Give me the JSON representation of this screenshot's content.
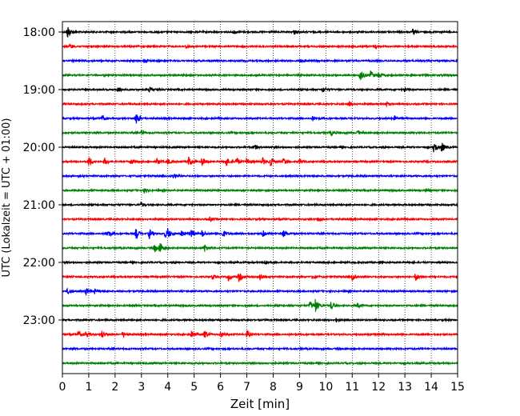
{
  "chart_data": {
    "type": "line",
    "title": "",
    "xlabel": "Zeit  [min]",
    "ylabel": "UTC (Lokalzeit = UTC + 01:00)",
    "xlim": [
      0,
      15
    ],
    "x_ticks": [
      "0",
      "1",
      "2",
      "3",
      "4",
      "5",
      "6",
      "7",
      "8",
      "9",
      "10",
      "11",
      "12",
      "13",
      "14",
      "15"
    ],
    "y_tick_labels": [
      "18:00",
      "19:00",
      "20:00",
      "21:00",
      "22:00",
      "23:00"
    ],
    "grid": "vertical dotted at each minute",
    "trace_colors": [
      "#000000",
      "#ff0000",
      "#0000ff",
      "#008000"
    ],
    "traces": [
      {
        "start": "18:00",
        "events": [
          {
            "t": 0.2,
            "a": 0.9
          },
          {
            "t": 6.5,
            "a": 0.3
          },
          {
            "t": 8.8,
            "a": 0.35
          },
          {
            "t": 13.3,
            "a": 0.35
          }
        ]
      },
      {
        "start": "18:15",
        "events": [
          {
            "t": 0.3,
            "a": 0.35
          },
          {
            "t": 4.7,
            "a": 0.3
          },
          {
            "t": 11.9,
            "a": 0.3
          }
        ]
      },
      {
        "start": "18:30",
        "events": [
          {
            "t": 3.1,
            "a": 0.3
          },
          {
            "t": 9.0,
            "a": 0.25
          }
        ]
      },
      {
        "start": "18:45",
        "events": [
          {
            "t": 11.3,
            "a": 1.0
          },
          {
            "t": 11.7,
            "a": 0.7
          },
          {
            "t": 12.0,
            "a": 0.5
          }
        ]
      },
      {
        "start": "19:00",
        "events": [
          {
            "t": 2.1,
            "a": 0.4
          },
          {
            "t": 3.3,
            "a": 0.35
          },
          {
            "t": 9.9,
            "a": 0.35
          },
          {
            "t": 13.0,
            "a": 0.3
          }
        ]
      },
      {
        "start": "19:15",
        "events": [
          {
            "t": 10.9,
            "a": 0.4
          },
          {
            "t": 12.3,
            "a": 0.3
          }
        ]
      },
      {
        "start": "19:30",
        "events": [
          {
            "t": 1.5,
            "a": 0.4
          },
          {
            "t": 2.8,
            "a": 0.9
          },
          {
            "t": 9.5,
            "a": 0.3
          },
          {
            "t": 12.6,
            "a": 0.3
          }
        ]
      },
      {
        "start": "19:45",
        "events": [
          {
            "t": 3.0,
            "a": 0.3
          },
          {
            "t": 10.2,
            "a": 0.35
          },
          {
            "t": 11.2,
            "a": 0.3
          }
        ]
      },
      {
        "start": "20:00",
        "events": [
          {
            "t": 14.1,
            "a": 0.8
          },
          {
            "t": 14.4,
            "a": 0.8
          },
          {
            "t": 7.3,
            "a": 0.3
          }
        ]
      },
      {
        "start": "20:15",
        "events": [
          {
            "t": 1.0,
            "a": 0.8
          },
          {
            "t": 1.6,
            "a": 0.5
          },
          {
            "t": 2.6,
            "a": 0.4
          },
          {
            "t": 3.6,
            "a": 0.5
          },
          {
            "t": 4.0,
            "a": 0.4
          },
          {
            "t": 4.8,
            "a": 0.8
          },
          {
            "t": 5.3,
            "a": 0.7
          },
          {
            "t": 6.2,
            "a": 0.8
          },
          {
            "t": 6.6,
            "a": 0.7
          },
          {
            "t": 7.0,
            "a": 0.6
          },
          {
            "t": 7.6,
            "a": 0.5
          },
          {
            "t": 7.9,
            "a": 0.8
          },
          {
            "t": 8.4,
            "a": 0.5
          },
          {
            "t": 9.0,
            "a": 0.4
          }
        ]
      },
      {
        "start": "20:30",
        "events": [
          {
            "t": 4.2,
            "a": 0.3
          }
        ]
      },
      {
        "start": "20:45",
        "events": [
          {
            "t": 3.1,
            "a": 0.35
          },
          {
            "t": 13.8,
            "a": 0.3
          }
        ]
      },
      {
        "start": "21:00",
        "events": [
          {
            "t": 3.0,
            "a": 0.3
          }
        ]
      },
      {
        "start": "21:15",
        "events": [
          {
            "t": 5.6,
            "a": 0.3
          },
          {
            "t": 9.7,
            "a": 0.3
          }
        ]
      },
      {
        "start": "21:30",
        "events": [
          {
            "t": 1.7,
            "a": 0.6
          },
          {
            "t": 2.8,
            "a": 0.8
          },
          {
            "t": 3.3,
            "a": 0.7
          },
          {
            "t": 3.9,
            "a": 0.5
          },
          {
            "t": 4.0,
            "a": 0.6
          },
          {
            "t": 4.5,
            "a": 0.5
          },
          {
            "t": 4.9,
            "a": 0.6
          },
          {
            "t": 5.3,
            "a": 0.5
          },
          {
            "t": 6.1,
            "a": 0.5
          },
          {
            "t": 7.6,
            "a": 0.5
          },
          {
            "t": 8.4,
            "a": 0.5
          }
        ]
      },
      {
        "start": "21:45",
        "events": [
          {
            "t": 3.5,
            "a": 0.6
          },
          {
            "t": 3.7,
            "a": 0.9
          },
          {
            "t": 5.4,
            "a": 0.5
          }
        ]
      },
      {
        "start": "22:00",
        "events": [
          {
            "t": 7.7,
            "a": 0.4
          }
        ]
      },
      {
        "start": "22:15",
        "events": [
          {
            "t": 5.7,
            "a": 0.4
          },
          {
            "t": 6.3,
            "a": 0.5
          },
          {
            "t": 6.7,
            "a": 0.7
          },
          {
            "t": 7.5,
            "a": 0.5
          },
          {
            "t": 9.5,
            "a": 0.4
          },
          {
            "t": 11.0,
            "a": 0.5
          },
          {
            "t": 13.4,
            "a": 0.6
          }
        ]
      },
      {
        "start": "22:30",
        "events": [
          {
            "t": 0.2,
            "a": 0.4
          },
          {
            "t": 0.9,
            "a": 0.5
          },
          {
            "t": 1.2,
            "a": 0.4
          }
        ]
      },
      {
        "start": "22:45",
        "events": [
          {
            "t": 9.4,
            "a": 0.6
          },
          {
            "t": 9.6,
            "a": 1.0
          },
          {
            "t": 10.2,
            "a": 0.6
          },
          {
            "t": 11.2,
            "a": 0.3
          }
        ]
      },
      {
        "start": "23:00",
        "events": [
          {
            "t": 10.4,
            "a": 0.25
          }
        ]
      },
      {
        "start": "23:15",
        "events": [
          {
            "t": 0.6,
            "a": 0.5
          },
          {
            "t": 0.9,
            "a": 0.5
          },
          {
            "t": 1.5,
            "a": 0.5
          },
          {
            "t": 2.3,
            "a": 0.5
          },
          {
            "t": 4.9,
            "a": 0.5
          },
          {
            "t": 5.4,
            "a": 0.7
          },
          {
            "t": 6.0,
            "a": 0.4
          },
          {
            "t": 7.0,
            "a": 0.6
          }
        ]
      },
      {
        "start": "23:30",
        "events": []
      },
      {
        "start": "23:45",
        "events": []
      }
    ]
  }
}
